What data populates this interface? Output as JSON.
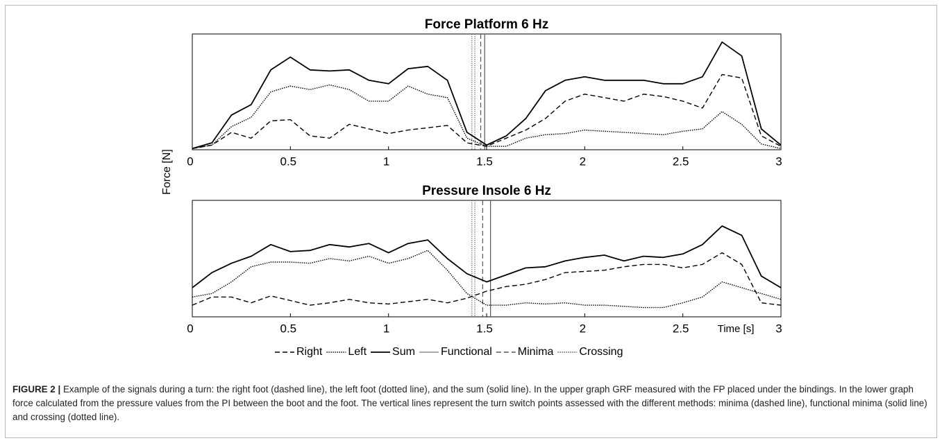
{
  "y_label": "Force [N]",
  "chart_data": [
    {
      "type": "line",
      "title": "Force Platform 6 Hz",
      "x": [
        0,
        0.1,
        0.2,
        0.3,
        0.4,
        0.5,
        0.6,
        0.7,
        0.8,
        0.9,
        1,
        1.1,
        1.2,
        1.3,
        1.4,
        1.5,
        1.6,
        1.7,
        1.8,
        1.9,
        2,
        2.1,
        2.2,
        2.3,
        2.4,
        2.5,
        2.6,
        2.7,
        2.8,
        2.9,
        3
      ],
      "xlim": [
        0,
        3
      ],
      "xticks": [
        0,
        0.5,
        1,
        1.5,
        2,
        2.5,
        3
      ],
      "ylim": [
        0,
        1
      ],
      "series": [
        {
          "name": "Right",
          "color": "#000000",
          "style": "dashed",
          "values": [
            0.01,
            0.04,
            0.15,
            0.1,
            0.25,
            0.26,
            0.12,
            0.1,
            0.22,
            0.18,
            0.14,
            0.17,
            0.19,
            0.21,
            0.06,
            0.03,
            0.1,
            0.17,
            0.27,
            0.42,
            0.48,
            0.45,
            0.42,
            0.48,
            0.46,
            0.42,
            0.36,
            0.65,
            0.62,
            0.12,
            0.03
          ]
        },
        {
          "name": "Left",
          "color": "#000000",
          "style": "dotted",
          "values": [
            0.01,
            0.04,
            0.2,
            0.28,
            0.5,
            0.55,
            0.52,
            0.56,
            0.52,
            0.42,
            0.42,
            0.55,
            0.48,
            0.45,
            0.1,
            0.03,
            0.03,
            0.1,
            0.13,
            0.14,
            0.17,
            0.16,
            0.15,
            0.14,
            0.13,
            0.16,
            0.18,
            0.33,
            0.22,
            0.05,
            0.01
          ]
        },
        {
          "name": "Sum",
          "color": "#000000",
          "style": "solid",
          "values": [
            0.01,
            0.06,
            0.3,
            0.39,
            0.69,
            0.8,
            0.69,
            0.68,
            0.69,
            0.6,
            0.57,
            0.7,
            0.72,
            0.6,
            0.15,
            0.04,
            0.12,
            0.27,
            0.51,
            0.6,
            0.63,
            0.6,
            0.6,
            0.6,
            0.57,
            0.57,
            0.63,
            0.93,
            0.81,
            0.18,
            0.04
          ]
        }
      ],
      "switch_lines": [
        {
          "name": "Functional",
          "color": "#555555",
          "style": "solid",
          "x": [
            1.49
          ]
        },
        {
          "name": "Minima",
          "color": "#555555",
          "style": "dashed",
          "x": [
            1.47
          ]
        },
        {
          "name": "Crossing",
          "color": "#777777",
          "style": "dotted",
          "x": [
            1.425,
            1.44
          ]
        }
      ]
    },
    {
      "type": "line",
      "title": "Pressure Insole 6 Hz",
      "x_label": "Time [s]",
      "x": [
        0,
        0.1,
        0.2,
        0.3,
        0.4,
        0.5,
        0.6,
        0.7,
        0.8,
        0.9,
        1,
        1.1,
        1.2,
        1.3,
        1.4,
        1.5,
        1.6,
        1.7,
        1.8,
        1.9,
        2,
        2.1,
        2.2,
        2.3,
        2.4,
        2.5,
        2.6,
        2.7,
        2.8,
        2.9,
        3
      ],
      "xlim": [
        0,
        3
      ],
      "xticks": [
        0,
        0.5,
        1,
        1.5,
        2,
        2.5,
        3
      ],
      "ylim": [
        0,
        1
      ],
      "series": [
        {
          "name": "Right",
          "color": "#000000",
          "style": "dashed",
          "values": [
            0.1,
            0.17,
            0.17,
            0.12,
            0.18,
            0.14,
            0.1,
            0.12,
            0.15,
            0.12,
            0.11,
            0.13,
            0.15,
            0.12,
            0.16,
            0.22,
            0.26,
            0.28,
            0.32,
            0.38,
            0.39,
            0.4,
            0.43,
            0.45,
            0.45,
            0.42,
            0.45,
            0.55,
            0.45,
            0.12,
            0.1
          ]
        },
        {
          "name": "Left",
          "color": "#000000",
          "style": "dotted",
          "values": [
            0.17,
            0.2,
            0.3,
            0.43,
            0.47,
            0.47,
            0.46,
            0.5,
            0.48,
            0.52,
            0.46,
            0.5,
            0.57,
            0.4,
            0.2,
            0.1,
            0.1,
            0.12,
            0.11,
            0.12,
            0.1,
            0.1,
            0.09,
            0.08,
            0.08,
            0.12,
            0.17,
            0.3,
            0.25,
            0.2,
            0.15
          ]
        },
        {
          "name": "Sum",
          "color": "#000000",
          "style": "solid",
          "values": [
            0.25,
            0.38,
            0.46,
            0.52,
            0.62,
            0.56,
            0.57,
            0.62,
            0.6,
            0.63,
            0.55,
            0.63,
            0.66,
            0.5,
            0.37,
            0.3,
            0.36,
            0.42,
            0.43,
            0.48,
            0.51,
            0.53,
            0.48,
            0.52,
            0.51,
            0.54,
            0.62,
            0.78,
            0.7,
            0.35,
            0.25
          ]
        }
      ],
      "switch_lines": [
        {
          "name": "Functional",
          "color": "#555555",
          "style": "solid",
          "x": [
            1.52
          ]
        },
        {
          "name": "Minima",
          "color": "#555555",
          "style": "dashed",
          "x": [
            1.48
          ]
        },
        {
          "name": "Crossing",
          "color": "#777777",
          "style": "dotted",
          "x": [
            1.425,
            1.44
          ]
        }
      ]
    }
  ],
  "caption": {
    "label": "FIGURE 2 |",
    "text": "Example of the signals during a turn: the right foot (dashed line), the left foot (dotted line), and the sum (solid line). In the upper graph GRF measured with the FP placed under the bindings. In the lower graph force calculated from the pressure values from the PI between the boot and the foot. The vertical lines represent the turn switch points assessed with the different methods: minima (dashed line), functional minima (solid line) and crossing (dotted line)."
  }
}
